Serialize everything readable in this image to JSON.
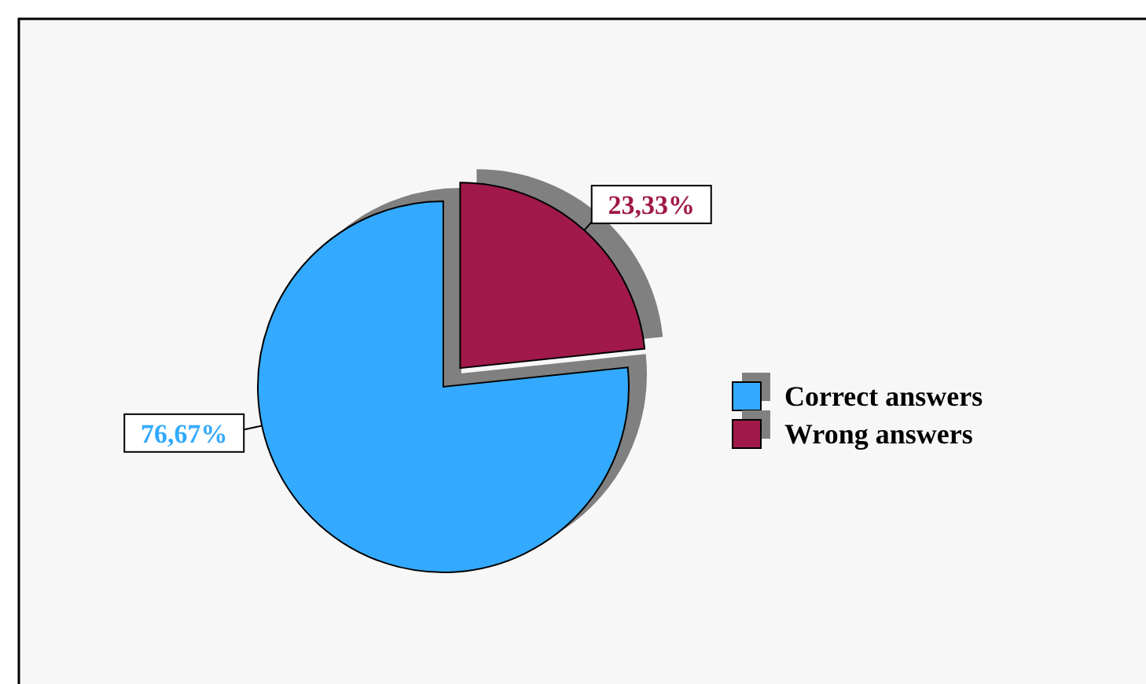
{
  "chart_data": {
    "type": "pie",
    "categories": [
      "Correct answers",
      "Wrong answers"
    ],
    "values": [
      76.67,
      23.33
    ],
    "colors": [
      "#33aaff",
      "#a0194a"
    ],
    "value_labels": [
      "76,67%",
      "23,33%"
    ],
    "legend": "right"
  }
}
